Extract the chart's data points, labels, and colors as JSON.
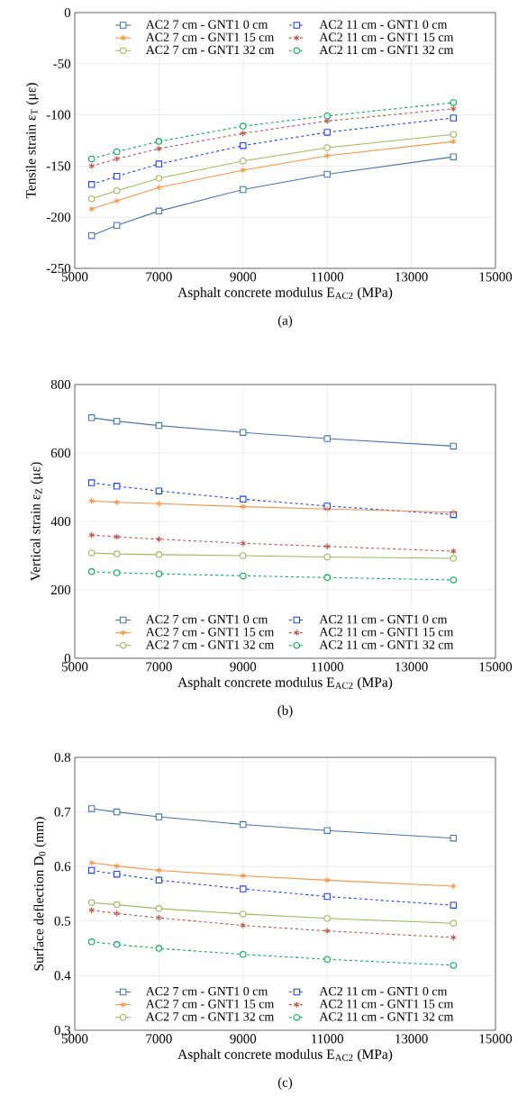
{
  "chart_data": [
    {
      "type": "line",
      "xlabel": "Asphalt concrete modulus E$_{AC2}$ (MPa)",
      "ylabel": "Tensile strain ε$_{T}$ (με)",
      "annotations": [
        "(a)"
      ],
      "x": [
        5400,
        6000,
        7000,
        9000,
        11000,
        14000
      ],
      "xlim": [
        5000,
        15000
      ],
      "xticks": [
        5000,
        7000,
        9000,
        11000,
        13000,
        15000
      ],
      "ylim": [
        -250,
        0
      ],
      "yticks": [
        -250,
        -200,
        -150,
        -100,
        -50,
        0
      ],
      "grid": true,
      "legend": "top",
      "series": [
        {
          "name": "AC2 7 cm - GNT1 0 cm",
          "color": "#4a74b0",
          "marker": "square",
          "line_style": "solid",
          "values": [
            -218,
            -208,
            -194,
            -173,
            -158,
            -141
          ]
        },
        {
          "name": "AC2 11 cm - GNT1 0 cm",
          "color": "#1f3fff",
          "marker": "square",
          "line_style": "dashed",
          "values": [
            -168,
            -160,
            -148,
            -130,
            -117,
            -103
          ]
        },
        {
          "name": "AC2 7 cm - GNT1 15 cm",
          "color": "#f79646",
          "marker": "cross",
          "line_style": "solid",
          "values": [
            -192,
            -184,
            -171,
            -154,
            -140,
            -126
          ]
        },
        {
          "name": "AC2 11 cm - GNT1 15 cm",
          "color": "#c0504d",
          "marker": "cross",
          "line_style": "dashed",
          "values": [
            -150,
            -143,
            -133,
            -118,
            -106,
            -94
          ]
        },
        {
          "name": "AC2 7 cm - GNT1 32 cm",
          "color": "#9bbb59",
          "marker": "circle",
          "line_style": "solid",
          "values": [
            -182,
            -174,
            -162,
            -145,
            -132,
            -119
          ]
        },
        {
          "name": "AC2 11 cm - GNT1 32 cm",
          "color": "#00b050",
          "marker": "circle",
          "line_style": "dashed",
          "values": [
            -143,
            -136,
            -126,
            -111,
            -101,
            -88
          ]
        }
      ]
    },
    {
      "type": "line",
      "xlabel": "Asphalt concrete modulus E$_{AC2}$ (MPa)",
      "ylabel": "Vertical strain ε$_{Z}$ (με)",
      "annotations": [
        "(b)"
      ],
      "x": [
        5400,
        6000,
        7000,
        9000,
        11000,
        14000
      ],
      "xlim": [
        5000,
        15000
      ],
      "xticks": [
        5000,
        7000,
        9000,
        11000,
        13000,
        15000
      ],
      "ylim": [
        0,
        800
      ],
      "yticks": [
        0,
        200,
        400,
        600,
        800
      ],
      "grid": true,
      "legend": "bottom",
      "series": [
        {
          "name": "AC2 7 cm - GNT1 0 cm",
          "color": "#4a74b0",
          "marker": "square",
          "line_style": "solid",
          "values": [
            703,
            693,
            680,
            660,
            642,
            620
          ]
        },
        {
          "name": "AC2 11 cm - GNT1 0 cm",
          "color": "#1f3fff",
          "marker": "square",
          "line_style": "dashed",
          "values": [
            513,
            503,
            489,
            465,
            445,
            420
          ]
        },
        {
          "name": "AC2 7 cm - GNT1 15 cm",
          "color": "#f79646",
          "marker": "cross",
          "line_style": "solid",
          "values": [
            460,
            456,
            452,
            443,
            436,
            427
          ]
        },
        {
          "name": "AC2 11 cm - GNT1 15 cm",
          "color": "#c0504d",
          "marker": "cross",
          "line_style": "dashed",
          "values": [
            360,
            355,
            348,
            336,
            327,
            313
          ]
        },
        {
          "name": "AC2 7 cm - GNT1 32 cm",
          "color": "#9bbb59",
          "marker": "circle",
          "line_style": "solid",
          "values": [
            308,
            305,
            303,
            300,
            296,
            292
          ]
        },
        {
          "name": "AC2 11 cm - GNT1 32 cm",
          "color": "#00b050",
          "marker": "circle",
          "line_style": "dashed",
          "values": [
            253,
            250,
            247,
            241,
            236,
            229
          ]
        }
      ]
    },
    {
      "type": "line",
      "xlabel": "Asphalt concrete modulus E$_{AC2}$ (MPa)",
      "ylabel": "Surface deflection D$_{0}$ (mm)",
      "annotations": [
        "(c)"
      ],
      "x": [
        5400,
        6000,
        7000,
        9000,
        11000,
        14000
      ],
      "xlim": [
        5000,
        15000
      ],
      "xticks": [
        5000,
        7000,
        9000,
        11000,
        13000,
        15000
      ],
      "ylim": [
        0.3,
        0.8
      ],
      "yticks": [
        0.3,
        0.4,
        0.5,
        0.6,
        0.7,
        0.8
      ],
      "grid": true,
      "legend": "bottom",
      "series": [
        {
          "name": "AC2 7 cm - GNT1 0 cm",
          "color": "#4a74b0",
          "marker": "square",
          "line_style": "solid",
          "values": [
            0.706,
            0.7,
            0.691,
            0.677,
            0.666,
            0.652
          ]
        },
        {
          "name": "AC2 11 cm - GNT1 0 cm",
          "color": "#1f3fff",
          "marker": "square",
          "line_style": "dashed",
          "values": [
            0.593,
            0.586,
            0.575,
            0.559,
            0.545,
            0.529
          ]
        },
        {
          "name": "AC2 7 cm - GNT1 15 cm",
          "color": "#f79646",
          "marker": "cross",
          "line_style": "solid",
          "values": [
            0.607,
            0.601,
            0.593,
            0.583,
            0.575,
            0.564
          ]
        },
        {
          "name": "AC2 11 cm - GNT1 15 cm",
          "color": "#c0504d",
          "marker": "cross",
          "line_style": "dashed",
          "values": [
            0.52,
            0.514,
            0.506,
            0.492,
            0.482,
            0.47
          ]
        },
        {
          "name": "AC2 7 cm - GNT1 32 cm",
          "color": "#9bbb59",
          "marker": "circle",
          "line_style": "solid",
          "values": [
            0.534,
            0.53,
            0.523,
            0.513,
            0.505,
            0.496
          ]
        },
        {
          "name": "AC2 11 cm - GNT1 32 cm",
          "color": "#00b050",
          "marker": "circle",
          "line_style": "dashed",
          "values": [
            0.462,
            0.457,
            0.45,
            0.439,
            0.43,
            0.419
          ]
        }
      ]
    }
  ]
}
